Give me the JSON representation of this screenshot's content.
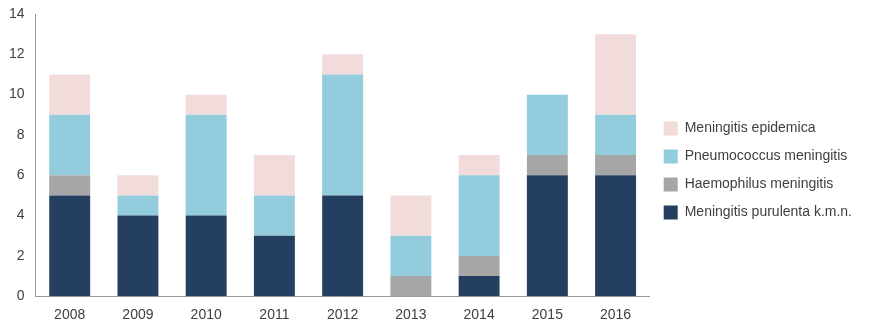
{
  "chart_data": {
    "type": "bar",
    "stacked": true,
    "grid": false,
    "legend": "right",
    "categories": [
      "2008",
      "2009",
      "2010",
      "2011",
      "2012",
      "2013",
      "2014",
      "2015",
      "2016"
    ],
    "series": [
      {
        "name": "Meningitis purulenta k.m.n.",
        "color": "#243F60",
        "values": [
          5,
          4,
          4,
          3,
          5,
          0,
          1,
          6,
          6
        ]
      },
      {
        "name": "Haemophilus meningitis",
        "color": "#A6A6A6",
        "values": [
          1,
          0,
          0,
          0,
          0,
          1,
          1,
          1,
          1
        ]
      },
      {
        "name": "Pneumococcus meningitis",
        "color": "#93CDDD",
        "values": [
          3,
          1,
          5,
          2,
          6,
          2,
          4,
          3,
          2
        ]
      },
      {
        "name": "Meningitis epidemica",
        "color": "#F2DCDB",
        "values": [
          2,
          1,
          1,
          2,
          1,
          2,
          1,
          0,
          4
        ]
      }
    ],
    "ylim": [
      0,
      14
    ],
    "yticks": [
      0,
      2,
      4,
      6,
      8,
      10,
      12,
      14
    ]
  }
}
